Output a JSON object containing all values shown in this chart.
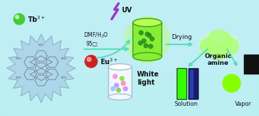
{
  "bg_color": "#c0eef5",
  "tb_ion_color": "#44cc33",
  "eu_ion_color": "#cc2222",
  "gel_color": "#88ee33",
  "gel_dot_color": "#228822",
  "gel_edge_color": "#44aa22",
  "gel_glow": "#bbff66",
  "arrow_color": "#55ddbb",
  "uv_bolt_color": "#9933cc",
  "text_color": "#111111",
  "tb_label": "Tb$^{3+}$",
  "eu_label": "Eu$^{3+}$",
  "uv_label": "UV",
  "dmf_label": "DMF/H$_2$O",
  "temp_label": "95□",
  "dry_label": "Drying",
  "wl_label": "White\nlight",
  "oa_label": "Organic\namine",
  "sol_label": "Solution",
  "vap_label": "Vapor",
  "spiky_color": "#a8cfe8",
  "spiky_edge": "#88aabb",
  "hex_color": "#778899",
  "wl_cyl_color": "#f0f8ff",
  "wl_cyl_edge": "#aabbcc"
}
